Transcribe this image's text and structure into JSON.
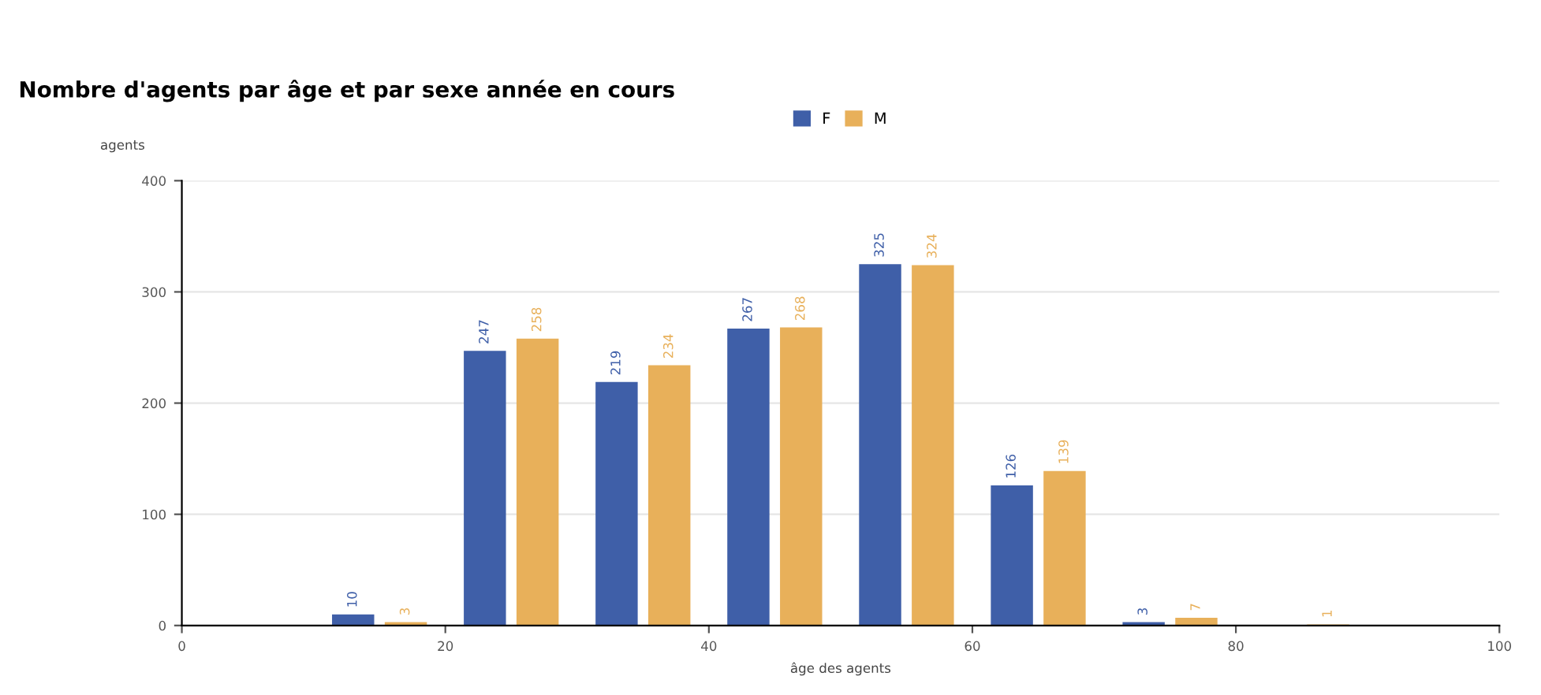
{
  "chart_data": {
    "type": "bar",
    "title": "Nombre d'agents par âge et par sexe année en cours",
    "xlabel": "âge des agents",
    "ylabel": "agents",
    "series": [
      {
        "name": "F",
        "color": "#3f5fa8",
        "x": [
          13,
          23,
          33,
          43,
          53,
          63,
          73
        ],
        "values": [
          10,
          247,
          219,
          267,
          325,
          126,
          3
        ]
      },
      {
        "name": "M",
        "color": "#e8b05a",
        "x": [
          17,
          27,
          37,
          47,
          57,
          67,
          77,
          87
        ],
        "values": [
          3,
          258,
          234,
          268,
          324,
          139,
          7,
          1
        ]
      }
    ],
    "xlim": [
      0,
      100
    ],
    "xticks": [
      0,
      20,
      40,
      60,
      80,
      100
    ],
    "ylim": [
      0,
      400
    ],
    "yticks": [
      0,
      100,
      200,
      300,
      400
    ],
    "grid": "y",
    "legend": "top",
    "data_labels": true
  }
}
